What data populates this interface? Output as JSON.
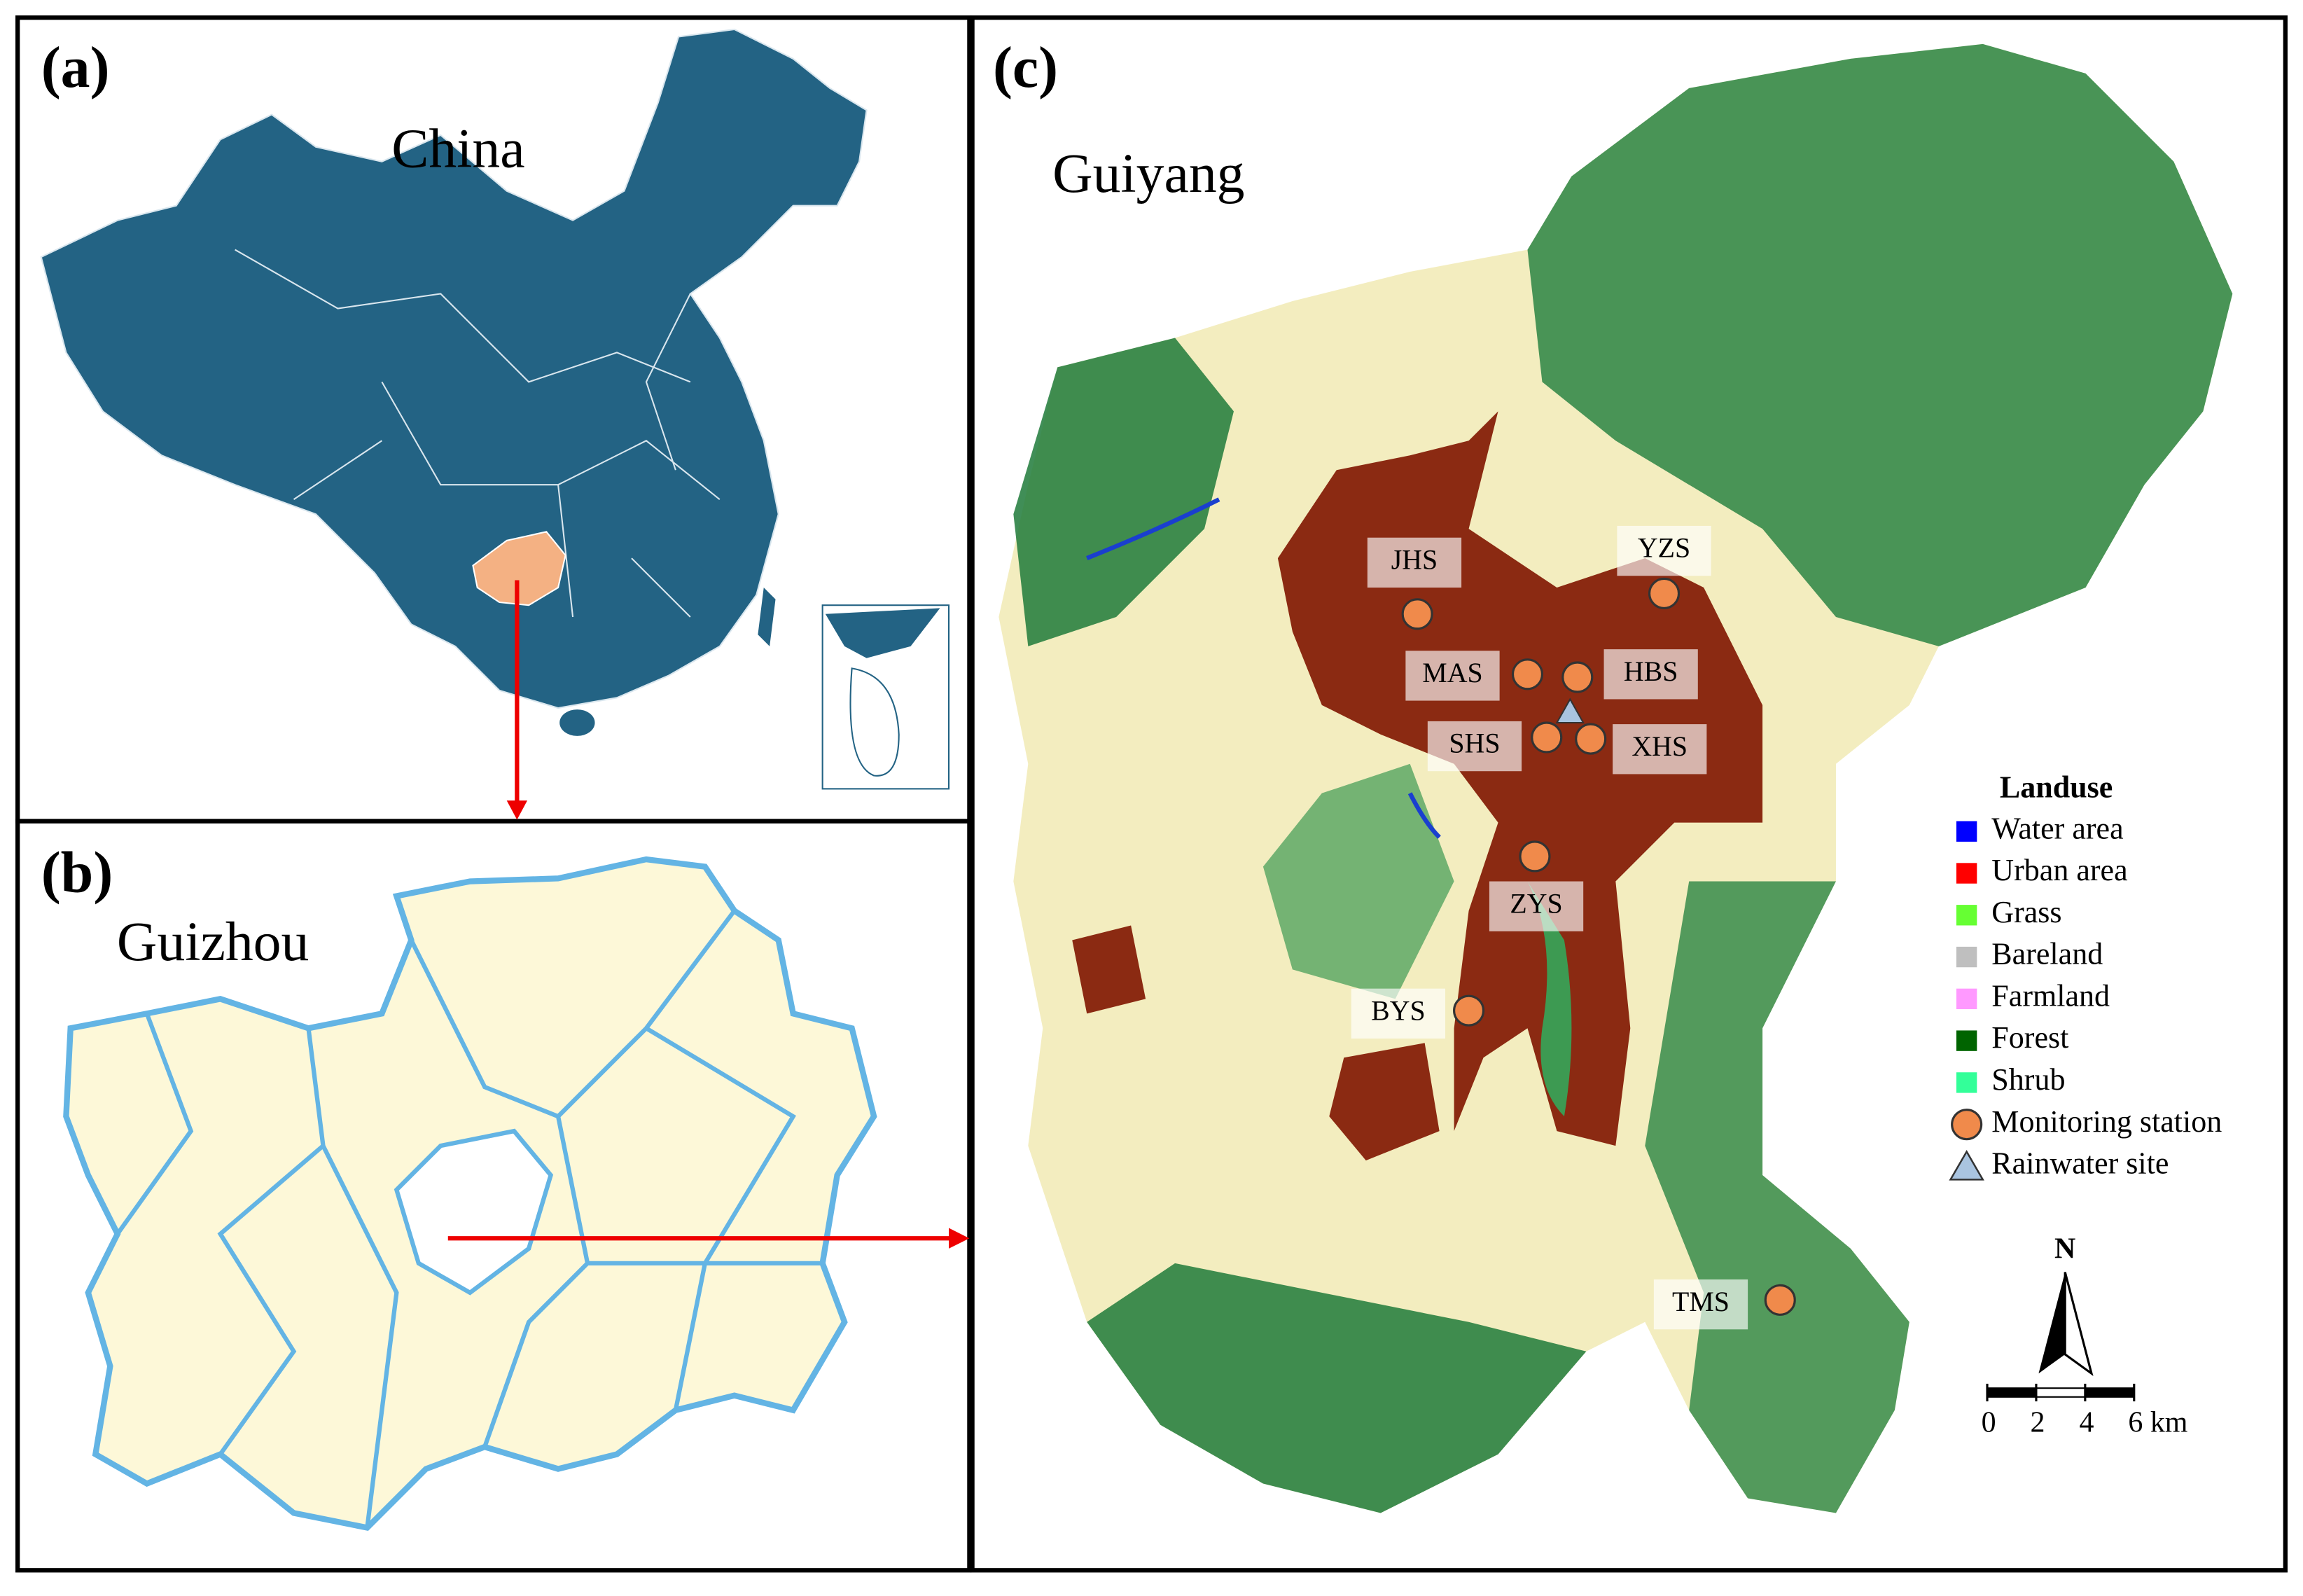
{
  "panels": [
    {
      "label": "(a)",
      "title": "China"
    },
    {
      "label": "(b)",
      "title": "Guizhou"
    },
    {
      "label": "(c)",
      "title": "Guiyang"
    }
  ],
  "stations": [
    {
      "name": "JHS"
    },
    {
      "name": "YZS"
    },
    {
      "name": "MAS"
    },
    {
      "name": "HBS"
    },
    {
      "name": "SHS"
    },
    {
      "name": "XHS"
    },
    {
      "name": "ZYS"
    },
    {
      "name": "BYS"
    },
    {
      "name": "TMS"
    }
  ],
  "legend": {
    "title": "Landuse",
    "items": [
      {
        "label": "Water area",
        "color": "#0000ff",
        "marker": "square"
      },
      {
        "label": "Urban area",
        "color": "#ff0000",
        "marker": "square"
      },
      {
        "label": "Grass",
        "color": "#66ff33",
        "marker": "square"
      },
      {
        "label": "Bareland",
        "color": "#bfbfbf",
        "marker": "square"
      },
      {
        "label": "Farmland",
        "color": "#ff99ff",
        "marker": "square"
      },
      {
        "label": "Forest",
        "color": "#006400",
        "marker": "square"
      },
      {
        "label": "Shrub",
        "color": "#33ff99",
        "marker": "square"
      },
      {
        "label": "Monitoring station",
        "color": "#f08a4b",
        "marker": "circle"
      },
      {
        "label": "Rainwater site",
        "color": "#a9c4e0",
        "marker": "triangle"
      }
    ]
  },
  "north_label": "N",
  "scale_bar": {
    "ticks": [
      0,
      2,
      4,
      {
        "value": 6,
        "label": "6 km"
      }
    ]
  }
}
